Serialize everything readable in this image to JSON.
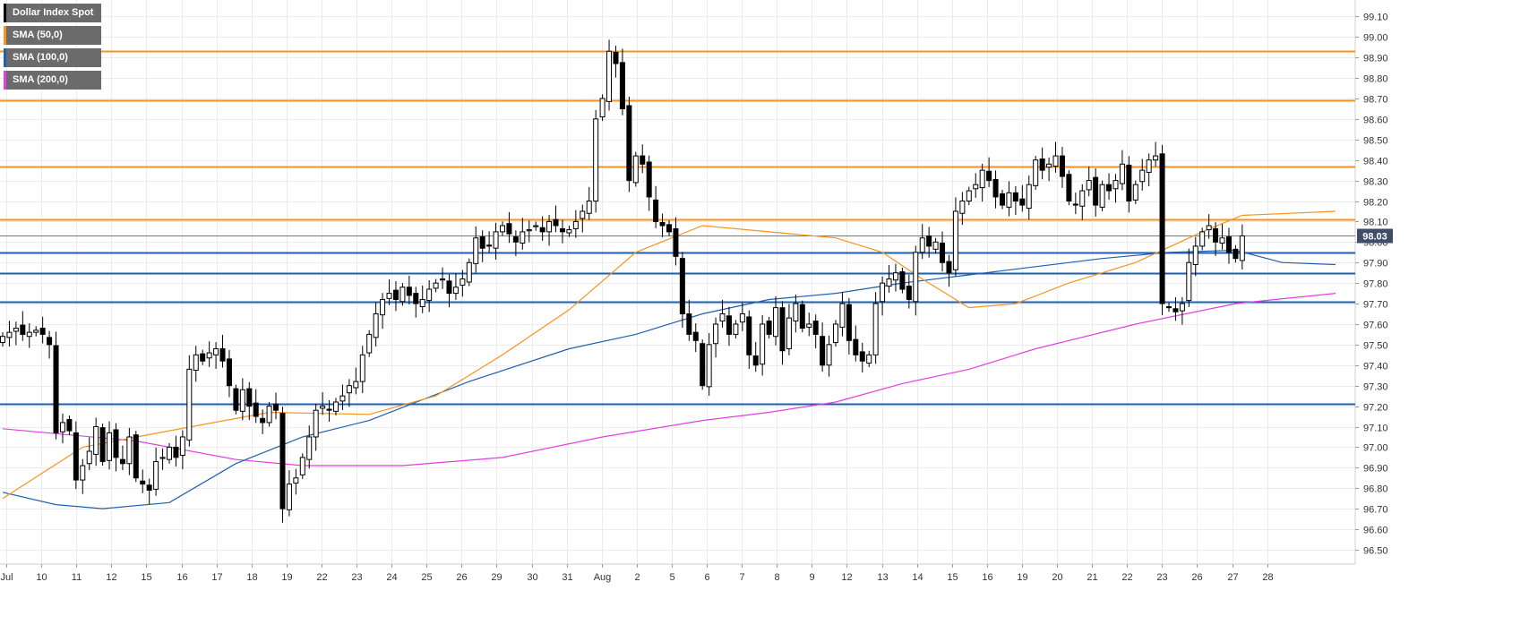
{
  "chart_data": {
    "type": "candlestick",
    "title": "",
    "xlabel": "",
    "ylabel": "",
    "ylim": [
      96.43,
      99.18
    ],
    "y_ticks": [
      "96.50",
      "96.60",
      "96.70",
      "96.80",
      "96.90",
      "97.00",
      "97.10",
      "97.20",
      "97.30",
      "97.40",
      "97.50",
      "97.60",
      "97.70",
      "97.80",
      "97.90",
      "98.00",
      "98.10",
      "98.20",
      "98.30",
      "98.40",
      "98.50",
      "98.60",
      "98.70",
      "98.80",
      "98.90",
      "99.00",
      "99.10"
    ],
    "x_ticks": [
      "Jul",
      "10",
      "11",
      "12",
      "15",
      "16",
      "17",
      "18",
      "19",
      "22",
      "23",
      "24",
      "25",
      "26",
      "29",
      "30",
      "31",
      "Aug",
      "2",
      "5",
      "6",
      "7",
      "8",
      "9",
      "12",
      "13",
      "14",
      "15",
      "16",
      "19",
      "20",
      "21",
      "22",
      "23",
      "26",
      "27",
      "28"
    ],
    "grid": true,
    "legend_position": "top-left",
    "legend": [
      {
        "label": "Dollar Index Spot",
        "color": "#000000"
      },
      {
        "label": "SMA (50,0)",
        "color": "#f7931e"
      },
      {
        "label": "SMA (100,0)",
        "color": "#1f5fb0"
      },
      {
        "label": "SMA (200,0)",
        "color": "#e040e0"
      }
    ],
    "last_price": {
      "value": 98.03,
      "label": "98.03"
    },
    "resistance_levels": [
      98.93,
      98.69,
      98.37,
      98.11
    ],
    "support_levels": [
      97.95,
      97.85,
      97.71,
      97.21
    ],
    "candles_close": [
      97.54,
      97.56,
      97.58,
      97.55,
      97.56,
      97.57,
      97.55,
      97.5,
      97.07,
      97.12,
      97.08,
      96.84,
      96.91,
      96.98,
      97.1,
      96.93,
      97.07,
      96.95,
      96.92,
      97.05,
      96.85,
      96.82,
      96.79,
      96.93,
      96.95,
      97.0,
      96.95,
      97.05,
      97.38,
      97.45,
      97.42,
      97.46,
      97.48,
      97.42,
      97.3,
      97.18,
      97.28,
      97.2,
      97.15,
      97.12,
      97.2,
      97.18,
      96.7,
      96.82,
      96.85,
      96.95,
      97.05,
      97.18,
      97.2,
      97.18,
      97.22,
      97.25,
      97.3,
      97.32,
      97.45,
      97.55,
      97.65,
      97.72,
      97.75,
      97.72,
      97.78,
      97.74,
      97.7,
      97.72,
      97.77,
      97.8,
      97.82,
      97.75,
      97.78,
      97.82,
      97.9,
      98.02,
      97.97,
      97.98,
      98.05,
      98.08,
      98.04,
      98.0,
      98.05,
      98.06,
      98.08,
      98.05,
      98.1,
      98.08,
      98.05,
      98.06,
      98.1,
      98.15,
      98.2,
      98.6,
      98.7,
      98.93,
      98.87,
      98.65,
      98.3,
      98.42,
      98.38,
      98.22,
      98.1,
      98.08,
      98.05,
      97.93,
      97.65,
      97.55,
      97.52,
      97.3,
      97.5,
      97.6,
      97.65,
      97.55,
      97.6,
      97.65,
      97.45,
      97.4,
      97.6,
      97.55,
      97.68,
      97.47,
      97.63,
      97.7,
      97.58,
      97.6,
      97.55,
      97.4,
      97.5,
      97.6,
      97.7,
      97.52,
      97.45,
      97.42,
      97.45,
      97.7,
      97.8,
      97.82,
      97.85,
      97.77,
      97.72,
      97.95,
      98.02,
      97.98,
      98.0,
      97.9,
      97.85,
      98.15,
      98.2,
      98.25,
      98.28,
      98.35,
      98.3,
      98.22,
      98.18,
      98.24,
      98.2,
      98.18,
      98.28,
      98.4,
      98.35,
      98.38,
      98.42,
      98.32,
      98.2,
      98.18,
      98.25,
      98.3,
      98.18,
      98.28,
      98.25,
      98.3,
      98.38,
      98.2,
      98.28,
      98.35,
      98.4,
      98.42,
      97.7,
      97.68,
      97.66,
      97.7,
      97.9,
      97.98,
      98.05,
      98.08,
      98.0,
      98.02,
      97.95,
      97.92,
      98.03
    ],
    "sma_50": [
      {
        "x": 0,
        "y": 96.75
      },
      {
        "x": 12,
        "y": 97.0
      },
      {
        "x": 25,
        "y": 97.08
      },
      {
        "x": 40,
        "y": 97.17
      },
      {
        "x": 55,
        "y": 97.16
      },
      {
        "x": 65,
        "y": 97.25
      },
      {
        "x": 75,
        "y": 97.45
      },
      {
        "x": 85,
        "y": 97.67
      },
      {
        "x": 95,
        "y": 97.95
      },
      {
        "x": 105,
        "y": 98.08
      },
      {
        "x": 115,
        "y": 98.05
      },
      {
        "x": 125,
        "y": 98.02
      },
      {
        "x": 132,
        "y": 97.95
      },
      {
        "x": 138,
        "y": 97.82
      },
      {
        "x": 145,
        "y": 97.68
      },
      {
        "x": 152,
        "y": 97.7
      },
      {
        "x": 160,
        "y": 97.8
      },
      {
        "x": 170,
        "y": 97.9
      },
      {
        "x": 180,
        "y": 98.05
      },
      {
        "x": 186,
        "y": 98.13
      },
      {
        "x": 200,
        "y": 98.15
      }
    ],
    "sma_100": [
      {
        "x": 0,
        "y": 96.78
      },
      {
        "x": 8,
        "y": 96.72
      },
      {
        "x": 15,
        "y": 96.7
      },
      {
        "x": 25,
        "y": 96.73
      },
      {
        "x": 35,
        "y": 96.92
      },
      {
        "x": 45,
        "y": 97.05
      },
      {
        "x": 55,
        "y": 97.13
      },
      {
        "x": 70,
        "y": 97.32
      },
      {
        "x": 85,
        "y": 97.48
      },
      {
        "x": 95,
        "y": 97.55
      },
      {
        "x": 105,
        "y": 97.65
      },
      {
        "x": 115,
        "y": 97.72
      },
      {
        "x": 125,
        "y": 97.75
      },
      {
        "x": 135,
        "y": 97.8
      },
      {
        "x": 145,
        "y": 97.84
      },
      {
        "x": 155,
        "y": 97.88
      },
      {
        "x": 165,
        "y": 97.92
      },
      {
        "x": 175,
        "y": 97.95
      },
      {
        "x": 185,
        "y": 97.96
      },
      {
        "x": 192,
        "y": 97.9
      },
      {
        "x": 200,
        "y": 97.89
      }
    ],
    "sma_200": [
      {
        "x": 0,
        "y": 97.09
      },
      {
        "x": 20,
        "y": 97.03
      },
      {
        "x": 35,
        "y": 96.94
      },
      {
        "x": 45,
        "y": 96.91
      },
      {
        "x": 60,
        "y": 96.91
      },
      {
        "x": 75,
        "y": 96.95
      },
      {
        "x": 90,
        "y": 97.05
      },
      {
        "x": 105,
        "y": 97.13
      },
      {
        "x": 115,
        "y": 97.17
      },
      {
        "x": 125,
        "y": 97.22
      },
      {
        "x": 135,
        "y": 97.31
      },
      {
        "x": 145,
        "y": 97.38
      },
      {
        "x": 155,
        "y": 97.48
      },
      {
        "x": 170,
        "y": 97.6
      },
      {
        "x": 185,
        "y": 97.7
      },
      {
        "x": 200,
        "y": 97.75
      }
    ]
  }
}
